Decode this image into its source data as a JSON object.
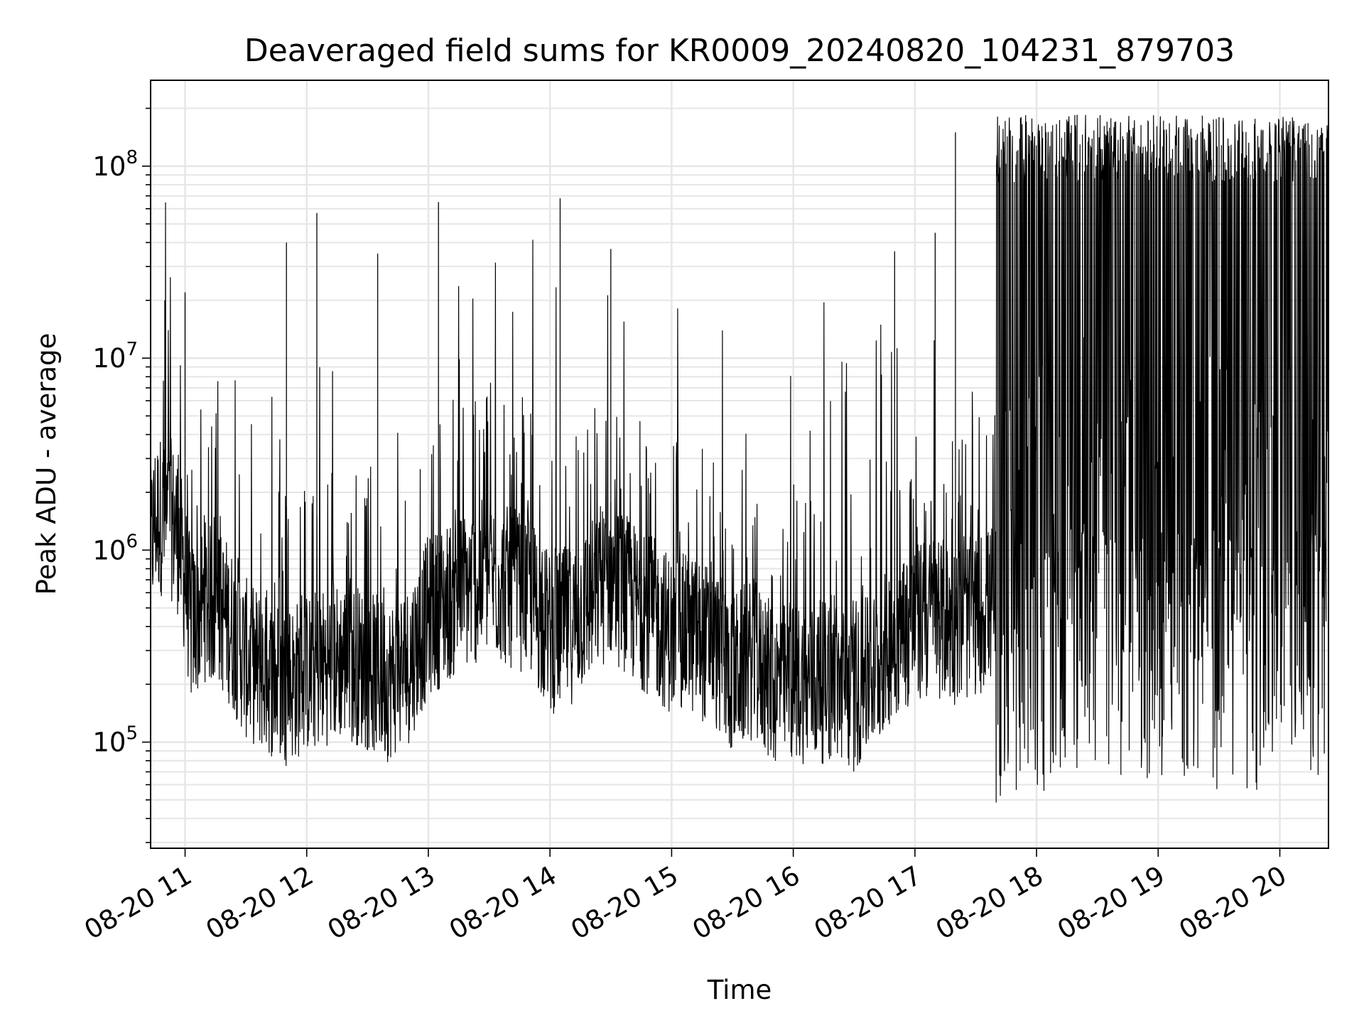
{
  "chart_data": {
    "type": "line",
    "title": "Deaveraged field sums for KR0009_20240820_104231_879703",
    "xlabel": "Time",
    "ylabel": "Peak ADU - average",
    "y_scale": "log",
    "ylim": [
      28000,
      280000000
    ],
    "xlim": [
      "2024-08-20 10:43",
      "2024-08-20 20:24"
    ],
    "grid": true,
    "grid_minor_y": true,
    "legend": "none",
    "line_color": "#000000",
    "x_tick_labels": [
      "08-20 11",
      "08-20 12",
      "08-20 13",
      "08-20 14",
      "08-20 15",
      "08-20 16",
      "08-20 17",
      "08-20 18",
      "08-20 19",
      "08-20 20"
    ],
    "x_tick_values": [
      "2024-08-20 11:00",
      "2024-08-20 12:00",
      "2024-08-20 13:00",
      "2024-08-20 14:00",
      "2024-08-20 15:00",
      "2024-08-20 16:00",
      "2024-08-20 17:00",
      "2024-08-20 18:00",
      "2024-08-20 19:00",
      "2024-08-20 20:00"
    ],
    "y_tick_labels": [
      {
        "base": "10",
        "exp": "5"
      },
      {
        "base": "10",
        "exp": "6"
      },
      {
        "base": "10",
        "exp": "7"
      },
      {
        "base": "10",
        "exp": "8"
      }
    ],
    "y_tick_values": [
      100000,
      1000000,
      10000000,
      100000000
    ],
    "series": [
      {
        "x": [
          "2024-08-20 10:43",
          "2024-08-20 10:45",
          "2024-08-20 10:48",
          "2024-08-20 10:50",
          "2024-08-20 10:53",
          "2024-08-20 10:56",
          "2024-08-20 11:00",
          "2024-08-20 11:03",
          "2024-08-20 11:10",
          "2024-08-20 11:20",
          "2024-08-20 11:30",
          "2024-08-20 11:40",
          "2024-08-20 11:50",
          "2024-08-20 12:00",
          "2024-08-20 12:10",
          "2024-08-20 12:20",
          "2024-08-20 12:30",
          "2024-08-20 12:40",
          "2024-08-20 12:50",
          "2024-08-20 13:00",
          "2024-08-20 13:10",
          "2024-08-20 13:20",
          "2024-08-20 13:30",
          "2024-08-20 13:40",
          "2024-08-20 13:50",
          "2024-08-20 14:00",
          "2024-08-20 14:10",
          "2024-08-20 14:20",
          "2024-08-20 14:30",
          "2024-08-20 14:40",
          "2024-08-20 14:50",
          "2024-08-20 15:00",
          "2024-08-20 15:10",
          "2024-08-20 15:20",
          "2024-08-20 15:30",
          "2024-08-20 15:40",
          "2024-08-20 15:50",
          "2024-08-20 16:00",
          "2024-08-20 16:10",
          "2024-08-20 16:20",
          "2024-08-20 16:30",
          "2024-08-20 16:40",
          "2024-08-20 16:50",
          "2024-08-20 17:00",
          "2024-08-20 17:10",
          "2024-08-20 17:20",
          "2024-08-20 17:30",
          "2024-08-20 17:40",
          "2024-08-20 17:50",
          "2024-08-20 18:00",
          "2024-08-20 18:10",
          "2024-08-20 18:20",
          "2024-08-20 18:30",
          "2024-08-20 18:40",
          "2024-08-20 18:50",
          "2024-08-20 19:00",
          "2024-08-20 19:10",
          "2024-08-20 19:20",
          "2024-08-20 19:30",
          "2024-08-20 19:40",
          "2024-08-20 19:50",
          "2024-08-20 20:00",
          "2024-08-20 20:10",
          "2024-08-20 20:20"
        ],
        "y": [
          1100000,
          1600000,
          1700000,
          1500000,
          1600000,
          1400000,
          800000,
          450000,
          600000,
          500000,
          300000,
          250000,
          220000,
          250000,
          280000,
          300000,
          260000,
          230000,
          280000,
          500000,
          600000,
          700000,
          800000,
          700000,
          650000,
          400000,
          450000,
          600000,
          800000,
          600000,
          500000,
          400000,
          400000,
          350000,
          250000,
          300000,
          220000,
          230000,
          220000,
          230000,
          200000,
          260000,
          400000,
          450000,
          500000,
          450000,
          500000,
          600000,
          700000,
          900000,
          1200000,
          1400000,
          1500000,
          1300000,
          1200000,
          1300000,
          1200000,
          1300000,
          1100000,
          1200000,
          1000000,
          1200000,
          1300000,
          1300000
        ]
      }
    ],
    "notes_spike_peaks": [
      {
        "x": "2024-08-20 10:50",
        "y": 20000000
      },
      {
        "x": "2024-08-20 11:00",
        "y": 22000000
      },
      {
        "x": "2024-08-20 11:50",
        "y": 40000000
      },
      {
        "x": "2024-08-20 12:05",
        "y": 57000000
      },
      {
        "x": "2024-08-20 12:35",
        "y": 35000000
      },
      {
        "x": "2024-08-20 13:05",
        "y": 65000000
      },
      {
        "x": "2024-08-20 14:05",
        "y": 68000000
      },
      {
        "x": "2024-08-20 14:30",
        "y": 37000000
      },
      {
        "x": "2024-08-20 16:50",
        "y": 36000000
      },
      {
        "x": "2024-08-20 17:10",
        "y": 45000000
      },
      {
        "x": "2024-08-20 17:20",
        "y": 150000000
      },
      {
        "x": "2024-08-20 18:20",
        "y": 185000000
      },
      {
        "x": "2024-08-20 19:30",
        "y": 180000000
      }
    ]
  }
}
